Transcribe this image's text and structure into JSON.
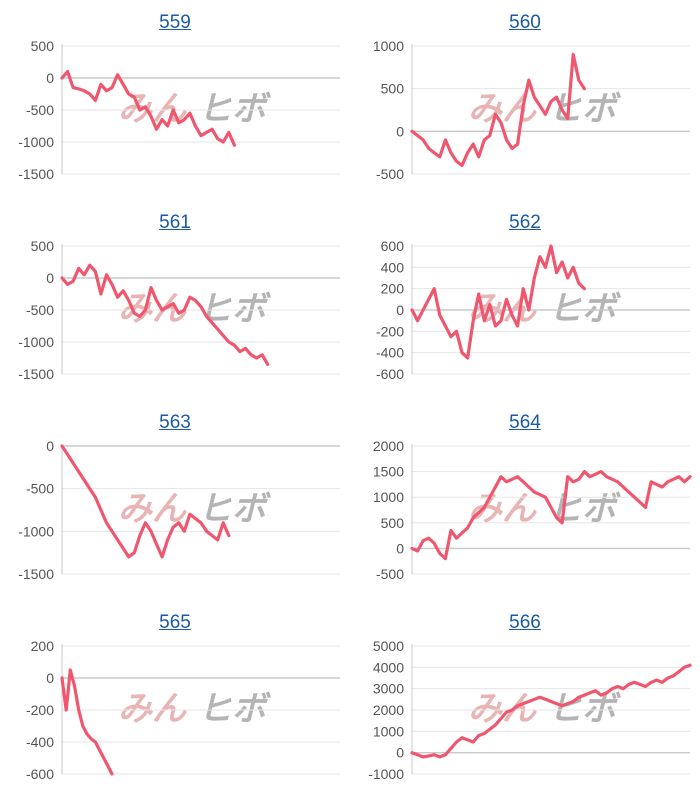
{
  "watermark": {
    "part1": "みん",
    "part2": "ヒボ"
  },
  "colors": {
    "line": "#f0566e",
    "grid": "#e6e6e6",
    "zero": "#c8c8c8",
    "link": "#1a5aa8"
  },
  "chart_data": [
    {
      "type": "line",
      "title": "559",
      "ylim": [
        -1500,
        500
      ],
      "yticks": [
        500,
        0,
        -500,
        -1000,
        -1500
      ],
      "xrange": [
        0,
        100
      ],
      "x": [
        0,
        2,
        4,
        6,
        8,
        10,
        12,
        14,
        16,
        18,
        20,
        22,
        24,
        26,
        28,
        30,
        32,
        34,
        36,
        38,
        40,
        42,
        44,
        46,
        48,
        50,
        52,
        54,
        56,
        58,
        60,
        62
      ],
      "values": [
        0,
        100,
        -150,
        -170,
        -200,
        -250,
        -350,
        -100,
        -200,
        -150,
        50,
        -100,
        -250,
        -300,
        -500,
        -450,
        -600,
        -800,
        -650,
        -750,
        -500,
        -700,
        -650,
        -550,
        -750,
        -900,
        -850,
        -800,
        -950,
        -1000,
        -850,
        -1050
      ]
    },
    {
      "type": "line",
      "title": "560",
      "ylim": [
        -500,
        1000
      ],
      "yticks": [
        1000,
        500,
        0,
        -500
      ],
      "xrange": [
        0,
        100
      ],
      "x": [
        0,
        2,
        4,
        6,
        8,
        10,
        12,
        14,
        16,
        18,
        20,
        22,
        24,
        26,
        28,
        30,
        32,
        34,
        36,
        38,
        40,
        42,
        44,
        46,
        48,
        50,
        52,
        54,
        56,
        58,
        60,
        62
      ],
      "values": [
        0,
        -50,
        -100,
        -200,
        -250,
        -300,
        -100,
        -250,
        -350,
        -400,
        -250,
        -150,
        -300,
        -100,
        -50,
        200,
        100,
        -100,
        -200,
        -150,
        300,
        600,
        400,
        300,
        200,
        350,
        400,
        250,
        150,
        900,
        600,
        500
      ]
    },
    {
      "type": "line",
      "title": "561",
      "ylim": [
        -1500,
        500
      ],
      "yticks": [
        500,
        0,
        -500,
        -1000,
        -1500
      ],
      "xrange": [
        0,
        100
      ],
      "x": [
        0,
        2,
        4,
        6,
        8,
        10,
        12,
        14,
        16,
        18,
        20,
        22,
        24,
        26,
        28,
        30,
        32,
        34,
        36,
        38,
        40,
        42,
        44,
        46,
        48,
        50,
        52,
        54,
        56,
        58,
        60,
        62,
        64,
        66,
        68,
        70,
        72,
        74
      ],
      "values": [
        0,
        -100,
        -50,
        150,
        50,
        200,
        100,
        -250,
        50,
        -100,
        -300,
        -200,
        -350,
        -550,
        -600,
        -500,
        -150,
        -350,
        -500,
        -450,
        -400,
        -550,
        -500,
        -300,
        -350,
        -450,
        -600,
        -700,
        -800,
        -900,
        -1000,
        -1050,
        -1150,
        -1100,
        -1200,
        -1250,
        -1200,
        -1350
      ]
    },
    {
      "type": "line",
      "title": "562",
      "ylim": [
        -600,
        600
      ],
      "yticks": [
        600,
        400,
        200,
        0,
        -200,
        -400,
        -600
      ],
      "xrange": [
        0,
        100
      ],
      "x": [
        0,
        2,
        4,
        6,
        8,
        10,
        12,
        14,
        16,
        18,
        20,
        22,
        24,
        26,
        28,
        30,
        32,
        34,
        36,
        38,
        40,
        42,
        44,
        46,
        48,
        50,
        52,
        54,
        56,
        58,
        60,
        62
      ],
      "values": [
        0,
        -100,
        0,
        100,
        200,
        -50,
        -150,
        -250,
        -200,
        -400,
        -450,
        -100,
        150,
        -100,
        50,
        -150,
        -100,
        100,
        -50,
        -150,
        200,
        0,
        300,
        500,
        400,
        600,
        350,
        450,
        300,
        400,
        250,
        200
      ]
    },
    {
      "type": "line",
      "title": "563",
      "ylim": [
        -1500,
        0
      ],
      "yticks": [
        0,
        -500,
        -1000,
        -1500
      ],
      "xrange": [
        0,
        100
      ],
      "x": [
        0,
        2,
        4,
        6,
        8,
        10,
        12,
        14,
        16,
        18,
        20,
        22,
        24,
        26,
        28,
        30,
        32,
        34,
        36,
        38,
        40,
        42,
        44,
        46,
        48,
        50,
        52,
        54,
        56,
        58,
        60
      ],
      "values": [
        0,
        -100,
        -200,
        -300,
        -400,
        -500,
        -600,
        -750,
        -900,
        -1000,
        -1100,
        -1200,
        -1300,
        -1250,
        -1050,
        -900,
        -1000,
        -1150,
        -1300,
        -1100,
        -950,
        -900,
        -1000,
        -800,
        -850,
        -900,
        -1000,
        -1050,
        -1100,
        -900,
        -1050
      ]
    },
    {
      "type": "line",
      "title": "564",
      "ylim": [
        -500,
        2000
      ],
      "yticks": [
        2000,
        1500,
        1000,
        500,
        0,
        -500
      ],
      "xrange": [
        0,
        100
      ],
      "x": [
        0,
        2,
        4,
        6,
        8,
        10,
        12,
        14,
        16,
        18,
        20,
        22,
        24,
        26,
        28,
        30,
        32,
        34,
        36,
        38,
        40,
        42,
        44,
        46,
        48,
        50,
        52,
        54,
        56,
        58,
        60,
        62,
        64,
        66,
        68,
        70,
        72,
        74,
        76,
        78,
        80,
        82,
        84,
        86,
        88,
        90,
        92,
        94,
        96,
        98,
        100
      ],
      "values": [
        0,
        -50,
        150,
        200,
        100,
        -100,
        -200,
        350,
        200,
        300,
        400,
        600,
        700,
        800,
        1000,
        1200,
        1400,
        1300,
        1350,
        1400,
        1300,
        1200,
        1100,
        1050,
        1000,
        800,
        600,
        500,
        1400,
        1300,
        1350,
        1500,
        1400,
        1450,
        1500,
        1400,
        1350,
        1300,
        1200,
        1100,
        1000,
        900,
        800,
        1300,
        1250,
        1200,
        1300,
        1350,
        1400,
        1300,
        1400
      ]
    },
    {
      "type": "line",
      "title": "565",
      "ylim": [
        -600,
        200
      ],
      "yticks": [
        200,
        0,
        -200,
        -400,
        -600
      ],
      "xrange": [
        0,
        100
      ],
      "x": [
        0,
        1.5,
        3,
        4.5,
        6,
        7.5,
        9,
        10.5,
        12,
        13.5,
        15,
        16.5,
        18
      ],
      "values": [
        0,
        -200,
        50,
        -50,
        -200,
        -300,
        -350,
        -380,
        -400,
        -450,
        -500,
        -550,
        -600
      ]
    },
    {
      "type": "line",
      "title": "566",
      "ylim": [
        -1000,
        5000
      ],
      "yticks": [
        5000,
        4000,
        3000,
        2000,
        1000,
        0,
        -1000
      ],
      "xrange": [
        0,
        100
      ],
      "x": [
        0,
        2,
        4,
        6,
        8,
        10,
        12,
        14,
        16,
        18,
        20,
        22,
        24,
        26,
        28,
        30,
        32,
        34,
        36,
        38,
        40,
        42,
        44,
        46,
        48,
        50,
        52,
        54,
        56,
        58,
        60,
        62,
        64,
        66,
        68,
        70,
        72,
        74,
        76,
        78,
        80,
        82,
        84,
        86,
        88,
        90,
        92,
        94,
        96,
        98,
        100
      ],
      "values": [
        0,
        -100,
        -200,
        -150,
        -100,
        -200,
        -100,
        200,
        500,
        700,
        600,
        500,
        800,
        900,
        1100,
        1300,
        1600,
        1900,
        2000,
        2200,
        2300,
        2400,
        2500,
        2600,
        2500,
        2400,
        2300,
        2200,
        2300,
        2400,
        2600,
        2700,
        2800,
        2900,
        2700,
        2800,
        3000,
        3100,
        3000,
        3200,
        3300,
        3200,
        3100,
        3300,
        3400,
        3300,
        3500,
        3600,
        3800,
        4000,
        4100
      ]
    }
  ]
}
